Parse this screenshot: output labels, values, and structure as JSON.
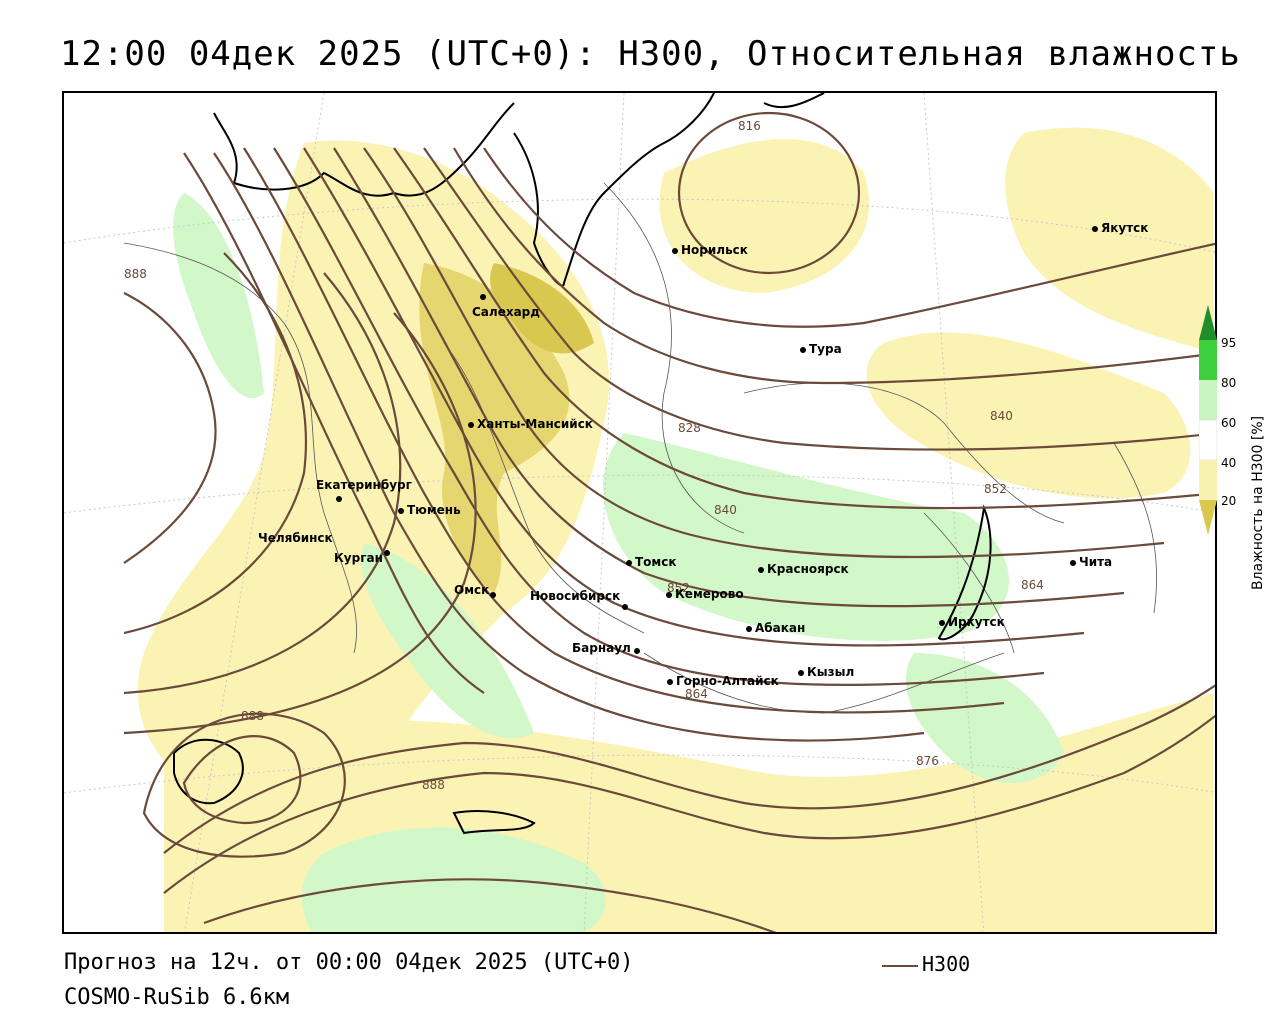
{
  "title": "12:00 04дек 2025 (UTC+0): H300, Относительная влажность",
  "footer": {
    "forecast": "Прогноз на 12ч. от 00:00 04дек 2025 (UTC+0)",
    "model": "COSMO-RuSib 6.6км",
    "series_label": "H300"
  },
  "legend": {
    "title": "Влажность на H300 [%]",
    "ticks": [
      "95",
      "80",
      "60",
      "40",
      "20"
    ],
    "colors": {
      "c95": "#1e8f2a",
      "c80": "#3ecf3e",
      "c60": "#c8f5c0",
      "c40": "#ffffff",
      "c20": "#f8f2b0",
      "c0": "#d8c850"
    }
  },
  "colors": {
    "isoline": "#6b4a3a",
    "coast": "#000000",
    "yellow": "#faf3b4",
    "yellow_dark": "#e6d670",
    "green_light": "#d2f7c8",
    "green": "#8fe38a"
  },
  "cities": [
    {
      "name": "Норильск"
    },
    {
      "name": "Якутск"
    },
    {
      "name": "Салехард"
    },
    {
      "name": "Тура"
    },
    {
      "name": "Ханты-Мансийск"
    },
    {
      "name": "Екатеринбург"
    },
    {
      "name": "Тюмень"
    },
    {
      "name": "Челябинск"
    },
    {
      "name": "Курган"
    },
    {
      "name": "Омск"
    },
    {
      "name": "Новосибирск"
    },
    {
      "name": "Томск"
    },
    {
      "name": "Кемерово"
    },
    {
      "name": "Красноярск"
    },
    {
      "name": "Абакан"
    },
    {
      "name": "Барнаул"
    },
    {
      "name": "Горно-Алтайск"
    },
    {
      "name": "Кызыл"
    },
    {
      "name": "Иркутск"
    },
    {
      "name": "Чита"
    }
  ],
  "isolines": [
    {
      "value": "816"
    },
    {
      "value": "828"
    },
    {
      "value": "840"
    },
    {
      "value": "840"
    },
    {
      "value": "852"
    },
    {
      "value": "852"
    },
    {
      "value": "864"
    },
    {
      "value": "864"
    },
    {
      "value": "876"
    },
    {
      "value": "888"
    },
    {
      "value": "888"
    },
    {
      "value": "888"
    }
  ]
}
